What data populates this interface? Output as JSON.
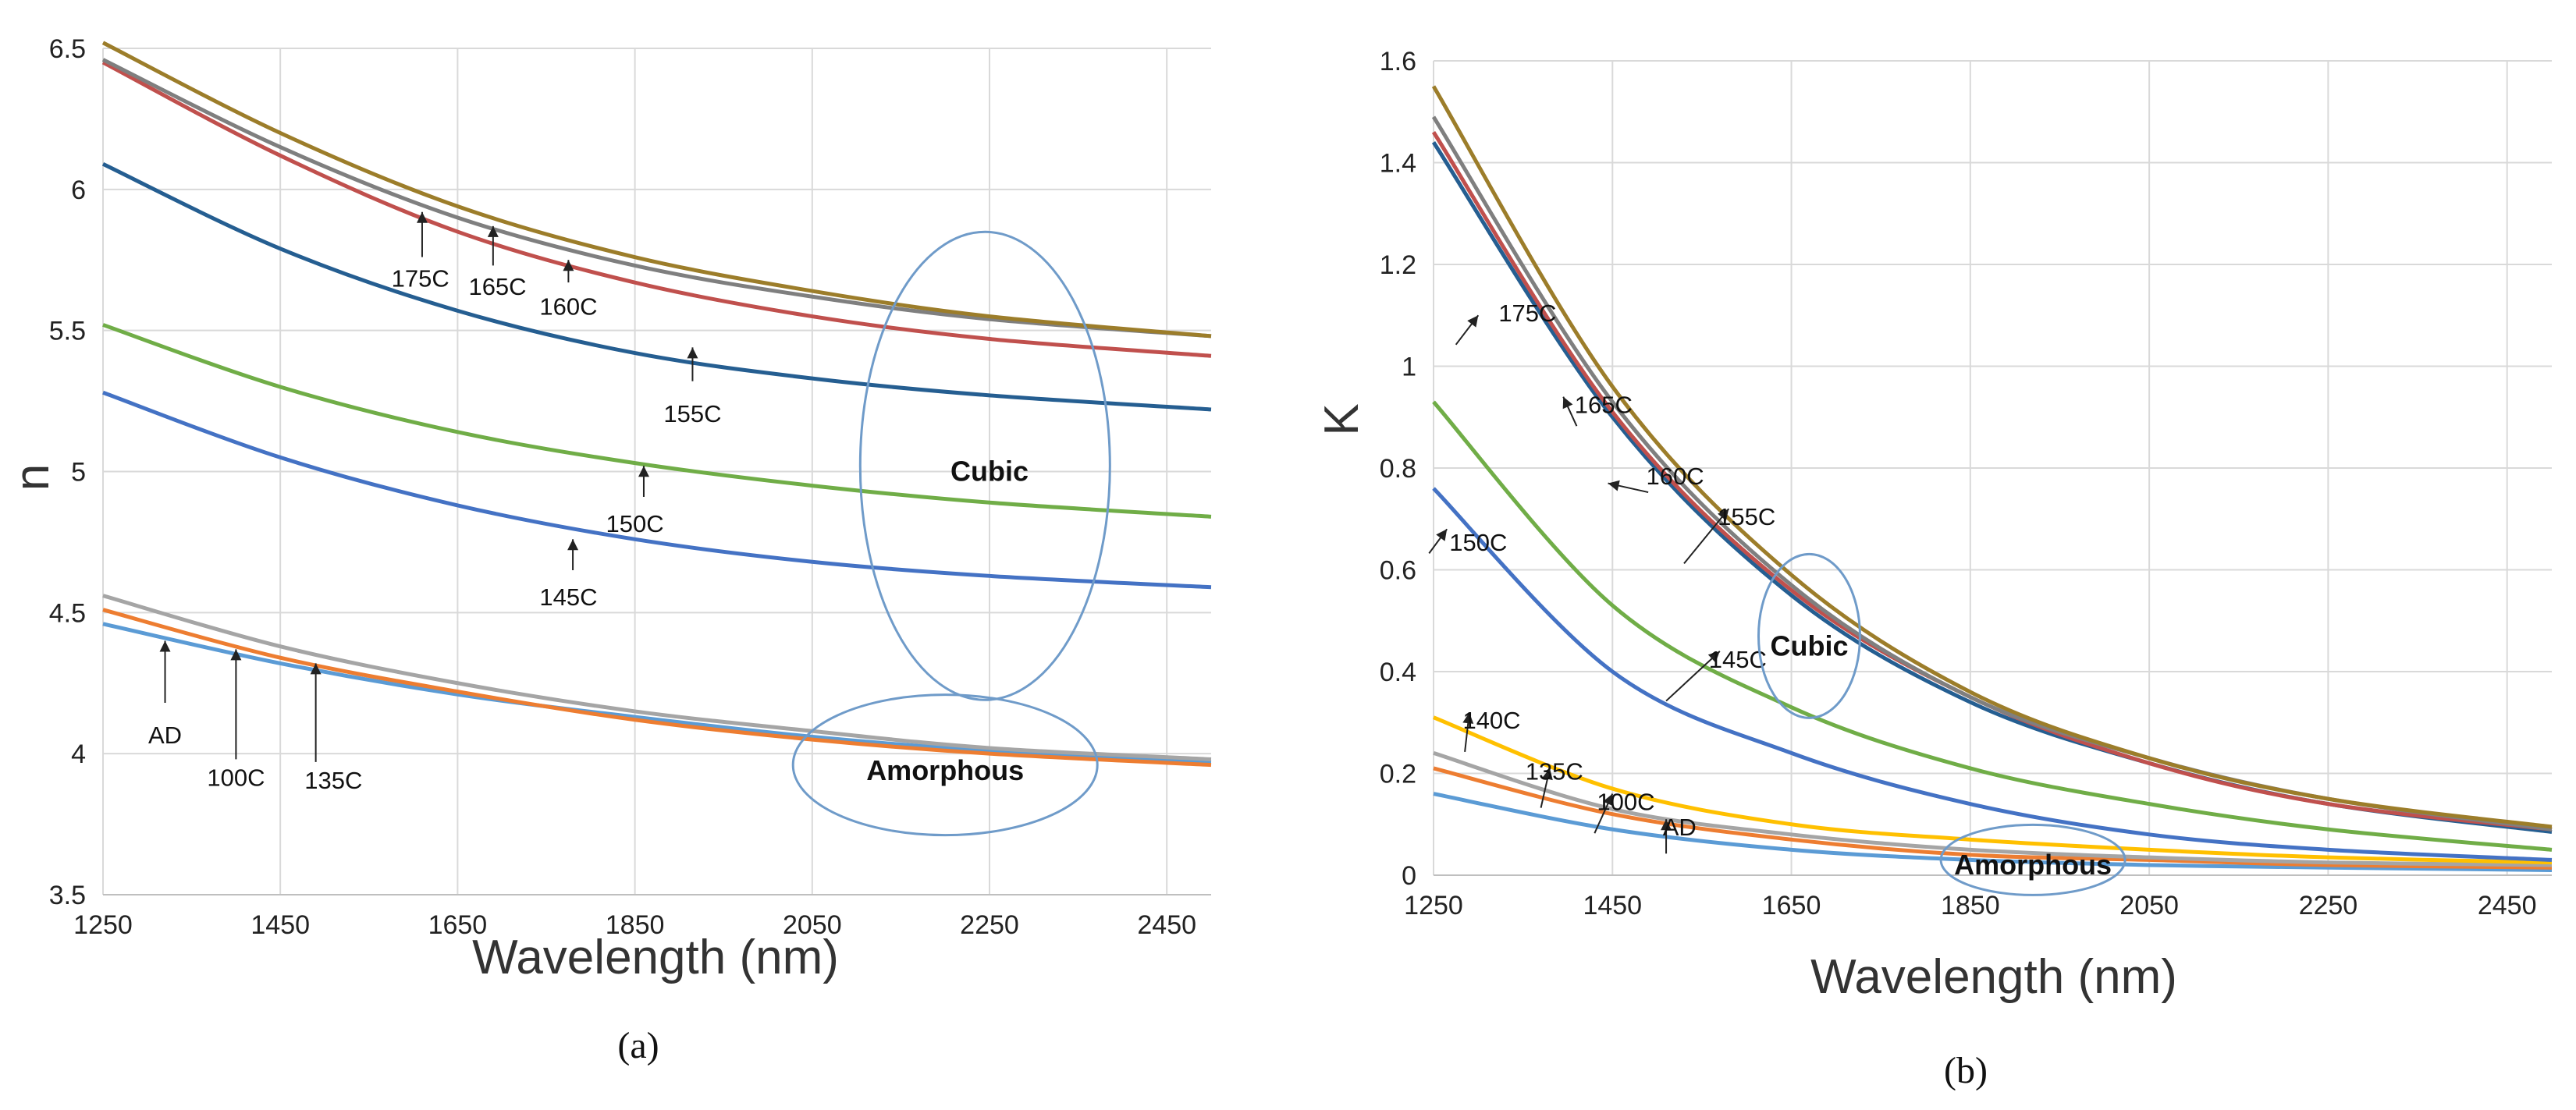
{
  "chart_data": [
    {
      "type": "line",
      "panel": "(a)",
      "xlabel": "Wavelength (nm)",
      "ylabel": "n",
      "xlim": [
        1250,
        2500
      ],
      "ylim": [
        3.5,
        6.5
      ],
      "xticks": [
        1250,
        1450,
        1650,
        1850,
        2050,
        2250,
        2450
      ],
      "yticks": [
        3.5,
        4,
        4.5,
        5,
        5.5,
        6,
        6.5
      ],
      "grid": true,
      "x": [
        1250,
        1450,
        1650,
        1850,
        2050,
        2250,
        2500
      ],
      "series": [
        {
          "name": "AD",
          "color": "#5b9bd5",
          "values": [
            4.46,
            4.32,
            4.21,
            4.13,
            4.06,
            4.01,
            3.97
          ]
        },
        {
          "name": "100C",
          "color": "#ed7d31",
          "values": [
            4.51,
            4.34,
            4.22,
            4.12,
            4.05,
            4.0,
            3.96
          ]
        },
        {
          "name": "135C",
          "color": "#a5a5a5",
          "values": [
            4.56,
            4.38,
            4.25,
            4.15,
            4.08,
            4.02,
            3.98
          ]
        },
        {
          "name": "145C",
          "color": "#4472c4",
          "values": [
            5.28,
            5.05,
            4.88,
            4.76,
            4.68,
            4.63,
            4.59
          ]
        },
        {
          "name": "150C",
          "color": "#70ad47",
          "values": [
            5.52,
            5.3,
            5.14,
            5.03,
            4.95,
            4.89,
            4.84
          ]
        },
        {
          "name": "155C",
          "color": "#255e91",
          "values": [
            6.09,
            5.79,
            5.57,
            5.42,
            5.33,
            5.27,
            5.22
          ]
        },
        {
          "name": "160C",
          "color": "#c0504d",
          "values": [
            6.45,
            6.12,
            5.85,
            5.67,
            5.55,
            5.47,
            5.41
          ]
        },
        {
          "name": "165C",
          "color": "#7f7f7f",
          "values": [
            6.46,
            6.15,
            5.9,
            5.73,
            5.62,
            5.54,
            5.48
          ]
        },
        {
          "name": "175C",
          "color": "#9c7d2a",
          "values": [
            6.52,
            6.2,
            5.94,
            5.76,
            5.64,
            5.55,
            5.48
          ]
        }
      ],
      "annotations": [
        {
          "text": "175C"
        },
        {
          "text": "165C"
        },
        {
          "text": "160C"
        },
        {
          "text": "155C"
        },
        {
          "text": "150C"
        },
        {
          "text": "145C"
        },
        {
          "text": "AD"
        },
        {
          "text": "100C"
        },
        {
          "text": "135C"
        }
      ],
      "regions": [
        {
          "text": "Cubic"
        },
        {
          "text": "Amorphous"
        }
      ],
      "caption": "(a)"
    },
    {
      "type": "line",
      "panel": "(b)",
      "xlabel": "Wavelength (nm)",
      "ylabel": "K",
      "xlim": [
        1250,
        2500
      ],
      "ylim": [
        0,
        1.6
      ],
      "xticks": [
        1250,
        1450,
        1650,
        1850,
        2050,
        2250,
        2450
      ],
      "yticks": [
        0,
        0.2,
        0.4,
        0.6,
        0.8,
        1,
        1.2,
        1.4,
        1.6
      ],
      "grid": true,
      "x": [
        1250,
        1450,
        1650,
        1850,
        2050,
        2250,
        2500
      ],
      "series": [
        {
          "name": "AD",
          "color": "#5b9bd5",
          "values": [
            0.16,
            0.09,
            0.05,
            0.03,
            0.02,
            0.015,
            0.01
          ]
        },
        {
          "name": "100C",
          "color": "#ed7d31",
          "values": [
            0.21,
            0.12,
            0.07,
            0.04,
            0.03,
            0.02,
            0.015
          ]
        },
        {
          "name": "135C",
          "color": "#a5a5a5",
          "values": [
            0.24,
            0.13,
            0.08,
            0.05,
            0.035,
            0.025,
            0.02
          ]
        },
        {
          "name": "140C",
          "color": "#ffc000",
          "values": [
            0.31,
            0.17,
            0.1,
            0.07,
            0.05,
            0.035,
            0.025
          ]
        },
        {
          "name": "145C",
          "color": "#4472c4",
          "values": [
            0.76,
            0.4,
            0.24,
            0.14,
            0.08,
            0.05,
            0.03
          ]
        },
        {
          "name": "150C",
          "color": "#70ad47",
          "values": [
            0.93,
            0.53,
            0.33,
            0.21,
            0.14,
            0.09,
            0.05
          ]
        },
        {
          "name": "155C",
          "color": "#255e91",
          "values": [
            1.44,
            0.9,
            0.55,
            0.34,
            0.22,
            0.14,
            0.085
          ]
        },
        {
          "name": "160C",
          "color": "#c0504d",
          "values": [
            1.46,
            0.91,
            0.56,
            0.35,
            0.22,
            0.14,
            0.09
          ]
        },
        {
          "name": "165C",
          "color": "#7f7f7f",
          "values": [
            1.49,
            0.93,
            0.57,
            0.35,
            0.23,
            0.15,
            0.09
          ]
        },
        {
          "name": "175C",
          "color": "#9c7d2a",
          "values": [
            1.55,
            0.96,
            0.59,
            0.36,
            0.23,
            0.15,
            0.095
          ]
        }
      ],
      "annotations": [
        {
          "text": "175C"
        },
        {
          "text": "165C"
        },
        {
          "text": "160C"
        },
        {
          "text": "155C"
        },
        {
          "text": "150C"
        },
        {
          "text": "145C"
        },
        {
          "text": "140C"
        },
        {
          "text": "135C"
        },
        {
          "text": "100C"
        },
        {
          "text": "AD"
        }
      ],
      "regions": [
        {
          "text": "Cubic"
        },
        {
          "text": "Amorphous"
        }
      ],
      "caption": "(b)"
    }
  ]
}
